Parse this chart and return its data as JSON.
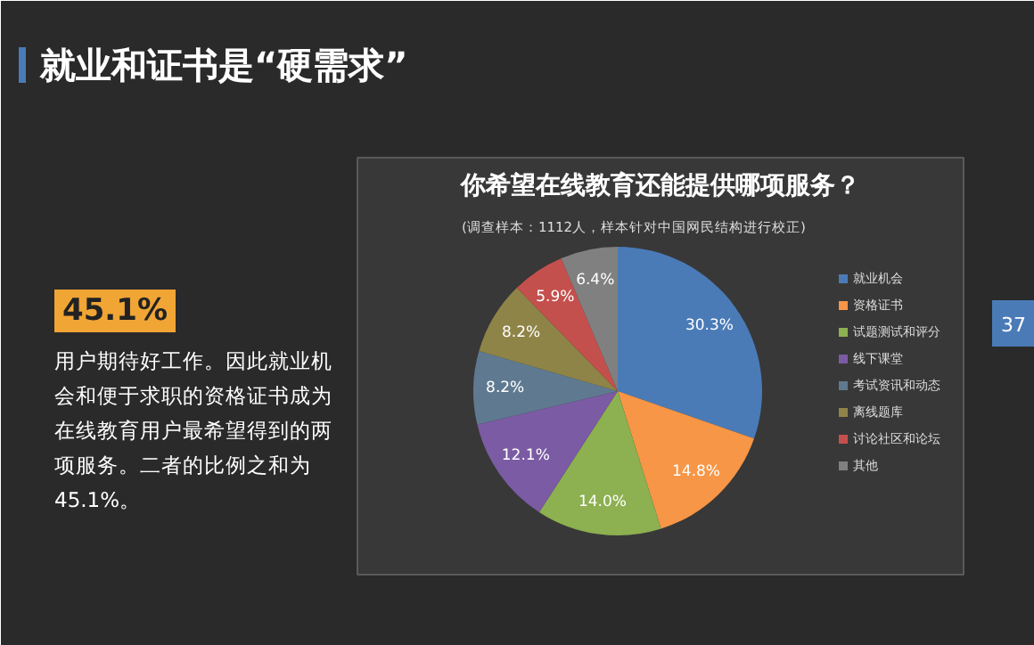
{
  "chart_data": {
    "type": "pie",
    "title": "你希望在线教育还能提供哪项服务？",
    "subtitle": "(调查样本：1112人，样本针对中国网民结构进行校正)",
    "categories": [
      "就业机会",
      "资格证书",
      "试题测试和评分",
      "线下课堂",
      "考试资讯和动态",
      "离线题库",
      "讨论社区和论坛",
      "其他"
    ],
    "values": [
      30.3,
      14.8,
      14.0,
      12.1,
      8.2,
      8.2,
      5.9,
      6.4
    ],
    "colors": [
      "#4a7bb7",
      "#f79646",
      "#8db050",
      "#7b5ba3",
      "#5f7a90",
      "#8f8447",
      "#c4504d",
      "#808080"
    ],
    "value_labels": [
      "30.3%",
      "14.8%",
      "14.0%",
      "12.1%",
      "8.2%",
      "8.2%",
      "5.9%",
      "6.4%"
    ],
    "legend": "right",
    "annotations": [
      "就业和证书是“硬需求”",
      "45.1%",
      "用户期待好工作。因此就业机会和便于求职的资格证书成为在线教育用户最希望得到的两项服务。二者的比例之和为45.1%。",
      "37"
    ]
  }
}
